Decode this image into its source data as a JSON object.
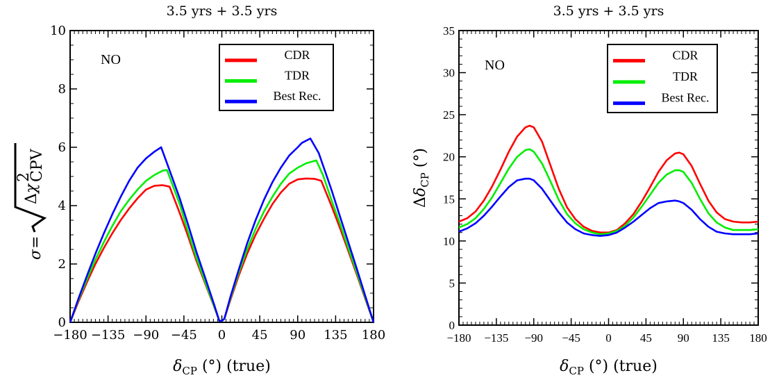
{
  "chart_data": [
    {
      "type": "line",
      "title": "3.5 yrs + 3.5 yrs",
      "annotation": "NO",
      "xlabel": "δCP (°) (true)",
      "ylabel": "σ= √Δχ²CPV",
      "xlim": [
        -180,
        180
      ],
      "ylim": [
        0,
        10
      ],
      "xticks": [
        -180,
        -135,
        -90,
        -45,
        0,
        45,
        90,
        135,
        180
      ],
      "xtick_labels": [
        "−180",
        "−135",
        "−90",
        "−45",
        "0",
        "45",
        "90",
        "135",
        "180"
      ],
      "yticks": [
        0,
        2,
        4,
        6,
        8,
        10
      ],
      "ytick_labels": [
        "0",
        "2",
        "4",
        "6",
        "8",
        "10"
      ],
      "legend_position": "top-right",
      "series": [
        {
          "name": "CDR",
          "color": "#ff0000",
          "x": [
            -180,
            -170,
            -160,
            -150,
            -140,
            -130,
            -120,
            -110,
            -100,
            -90,
            -80,
            -70,
            -62,
            -50,
            -40,
            -30,
            -20,
            -10,
            -3,
            0,
            3,
            10,
            20,
            30,
            40,
            50,
            60,
            70,
            80,
            90,
            100,
            110,
            118,
            130,
            140,
            150,
            160,
            170,
            180
          ],
          "y": [
            0,
            0.72,
            1.38,
            2.0,
            2.55,
            3.05,
            3.5,
            3.9,
            4.25,
            4.55,
            4.68,
            4.7,
            4.65,
            3.75,
            2.95,
            2.1,
            1.35,
            0.6,
            0.05,
            0.05,
            0.12,
            0.75,
            1.6,
            2.35,
            3.0,
            3.55,
            4.05,
            4.45,
            4.75,
            4.9,
            4.93,
            4.92,
            4.85,
            4.0,
            3.25,
            2.45,
            1.65,
            0.82,
            0
          ]
        },
        {
          "name": "TDR",
          "color": "#00ee00",
          "x": [
            -180,
            -170,
            -160,
            -150,
            -140,
            -130,
            -120,
            -110,
            -100,
            -90,
            -80,
            -70,
            -65,
            -50,
            -40,
            -30,
            -20,
            -10,
            -3,
            0,
            3,
            10,
            20,
            30,
            40,
            50,
            60,
            70,
            80,
            90,
            100,
            112,
            120,
            130,
            140,
            150,
            160,
            170,
            180
          ],
          "y": [
            0,
            0.78,
            1.48,
            2.15,
            2.75,
            3.3,
            3.8,
            4.2,
            4.55,
            4.85,
            5.05,
            5.2,
            5.22,
            4.05,
            3.1,
            2.2,
            1.4,
            0.62,
            0.05,
            0.05,
            0.12,
            0.8,
            1.7,
            2.5,
            3.2,
            3.8,
            4.3,
            4.75,
            5.1,
            5.3,
            5.45,
            5.55,
            5.05,
            4.2,
            3.4,
            2.55,
            1.72,
            0.86,
            0
          ]
        },
        {
          "name": "Best Rec.",
          "color": "#0000ff",
          "x": [
            -180,
            -170,
            -160,
            -150,
            -140,
            -130,
            -120,
            -110,
            -100,
            -90,
            -80,
            -72,
            -60,
            -50,
            -40,
            -30,
            -20,
            -10,
            -3,
            0,
            3,
            10,
            20,
            30,
            40,
            50,
            60,
            70,
            80,
            90,
            95,
            105,
            115,
            130,
            140,
            150,
            160,
            170,
            180
          ],
          "y": [
            0,
            0.82,
            1.6,
            2.35,
            3.05,
            3.7,
            4.3,
            4.85,
            5.3,
            5.62,
            5.85,
            6.0,
            5.05,
            4.25,
            3.35,
            2.4,
            1.55,
            0.68,
            0.05,
            0.05,
            0.12,
            0.85,
            1.8,
            2.7,
            3.5,
            4.2,
            4.8,
            5.3,
            5.72,
            6.0,
            6.15,
            6.3,
            5.8,
            4.55,
            3.65,
            2.75,
            1.85,
            0.92,
            0
          ]
        }
      ]
    },
    {
      "type": "line",
      "title": "3.5 yrs + 3.5 yrs",
      "annotation": "NO",
      "xlabel": "δCP (°) (true)",
      "ylabel": "ΔδCP (°)",
      "xlim": [
        -180,
        180
      ],
      "ylim": [
        0,
        35
      ],
      "xticks": [
        -180,
        -135,
        -90,
        -45,
        0,
        45,
        90,
        135,
        180
      ],
      "xtick_labels": [
        "−180",
        "−135",
        "−90",
        "−45",
        "0",
        "45",
        "90",
        "135",
        "180"
      ],
      "yticks": [
        0,
        5,
        10,
        15,
        20,
        25,
        30,
        35
      ],
      "ytick_labels": [
        "0",
        "5",
        "10",
        "15",
        "20",
        "25",
        "30",
        "35"
      ],
      "legend_position": "top-right",
      "series": [
        {
          "name": "CDR",
          "color": "#ff0000",
          "x": [
            -180,
            -170,
            -160,
            -150,
            -140,
            -130,
            -120,
            -110,
            -100,
            -95,
            -90,
            -80,
            -70,
            -60,
            -50,
            -40,
            -30,
            -20,
            -10,
            0,
            10,
            20,
            30,
            40,
            50,
            60,
            70,
            80,
            85,
            90,
            100,
            110,
            120,
            130,
            140,
            150,
            160,
            170,
            180
          ],
          "y": [
            12.3,
            12.7,
            13.5,
            14.8,
            16.5,
            18.5,
            20.6,
            22.4,
            23.5,
            23.7,
            23.5,
            21.8,
            19.0,
            16.2,
            14.0,
            12.6,
            11.7,
            11.2,
            11.0,
            11.0,
            11.3,
            12.1,
            13.2,
            14.7,
            16.4,
            18.2,
            19.6,
            20.4,
            20.5,
            20.3,
            18.9,
            16.8,
            14.8,
            13.4,
            12.6,
            12.3,
            12.2,
            12.2,
            12.3
          ]
        },
        {
          "name": "TDR",
          "color": "#00ee00",
          "x": [
            -180,
            -170,
            -160,
            -150,
            -140,
            -130,
            -120,
            -110,
            -100,
            -95,
            -90,
            -80,
            -70,
            -60,
            -50,
            -40,
            -30,
            -20,
            -10,
            0,
            10,
            20,
            30,
            40,
            50,
            60,
            70,
            80,
            85,
            90,
            100,
            110,
            120,
            130,
            140,
            150,
            160,
            170,
            180
          ],
          "y": [
            11.6,
            12.0,
            12.7,
            13.8,
            15.2,
            16.9,
            18.6,
            20.0,
            20.8,
            20.9,
            20.6,
            19.2,
            17.1,
            14.9,
            13.2,
            12.1,
            11.4,
            11.0,
            10.8,
            10.9,
            11.2,
            11.8,
            12.8,
            14.1,
            15.5,
            16.9,
            17.9,
            18.4,
            18.4,
            18.2,
            16.9,
            15.0,
            13.3,
            12.2,
            11.6,
            11.3,
            11.3,
            11.3,
            11.4
          ]
        },
        {
          "name": "Best Rec.",
          "color": "#0000ff",
          "x": [
            -180,
            -170,
            -160,
            -150,
            -140,
            -130,
            -120,
            -110,
            -100,
            -95,
            -90,
            -80,
            -70,
            -60,
            -50,
            -40,
            -30,
            -20,
            -10,
            0,
            10,
            20,
            30,
            40,
            50,
            60,
            70,
            80,
            85,
            90,
            100,
            110,
            120,
            130,
            140,
            150,
            160,
            170,
            180
          ],
          "y": [
            11.1,
            11.5,
            12.1,
            13.0,
            14.1,
            15.3,
            16.4,
            17.2,
            17.4,
            17.4,
            17.2,
            16.2,
            14.8,
            13.4,
            12.2,
            11.4,
            10.9,
            10.7,
            10.6,
            10.7,
            11.0,
            11.6,
            12.3,
            13.1,
            13.9,
            14.5,
            14.7,
            14.8,
            14.7,
            14.5,
            13.7,
            12.6,
            11.7,
            11.1,
            10.9,
            10.8,
            10.8,
            10.8,
            10.9
          ]
        }
      ]
    }
  ]
}
